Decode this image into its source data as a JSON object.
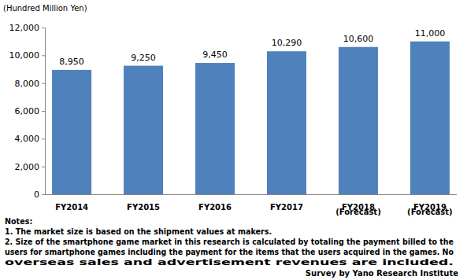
{
  "chart_data": {
    "type": "bar",
    "y_label": "(Hundred Million Yen)",
    "categories": [
      "FY2014",
      "FY2015",
      "FY2016",
      "FY2017",
      "FY2018\n(Forecast)",
      "FY2019\n(Forecast)"
    ],
    "values": [
      8950,
      9250,
      9450,
      10290,
      10600,
      11000
    ],
    "value_labels": [
      "8,950",
      "9,250",
      "9,450",
      "10,290",
      "10,600",
      "11,000"
    ],
    "data_labels": true,
    "color": "#4f81bd",
    "ylim": [
      0,
      12000
    ],
    "yticks": [
      0,
      {
        "value": 2000,
        "label": "2,000"
      },
      {
        "value": 4000,
        "label": "4,000"
      },
      {
        "value": 6000,
        "label": "6,000"
      },
      {
        "value": 8000,
        "label": "8,000"
      },
      {
        "value": 10000,
        "label": "10,000"
      },
      {
        "value": 12000,
        "label": "12,000"
      }
    ],
    "grid": false,
    "notes": [
      "Notes:",
      "1. The market size is based on the shipment values at makers.",
      "2. Size of the smartphone game market in this research is calculated by totaling the payment billed to the",
      "users for smartphone games including the payment for the items that the users acquired in the games. No",
      "overseas sales and advertisement revenues are included."
    ],
    "source": "Survey by Yano Research Institute"
  }
}
